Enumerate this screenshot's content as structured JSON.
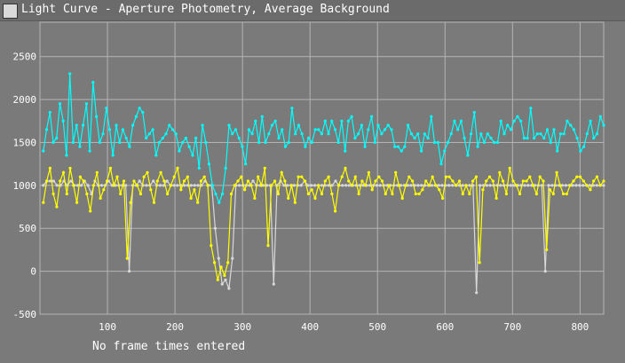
{
  "window": {
    "title": "Light Curve - Aperture Photometry, Average Background"
  },
  "status": {
    "text": "No frame times entered"
  },
  "colors": {
    "background": "#7a7a7a",
    "grid": "#b4b4b4",
    "text": "#ffffff",
    "series1": "#00ffff",
    "series2": "#ffff00",
    "series3": "#d8d8d8"
  },
  "chart_data": {
    "type": "line",
    "xlim": [
      0,
      835
    ],
    "ylim": [
      -500,
      2900
    ],
    "x_ticks": [
      100,
      200,
      300,
      400,
      500,
      600,
      700,
      800
    ],
    "y_ticks": [
      -500,
      0,
      500,
      1000,
      1500,
      2000,
      2500
    ],
    "grid": true,
    "series": [
      {
        "color": "#00ffff",
        "values": [
          1400,
          1650,
          1850,
          1500,
          1550,
          1950,
          1750,
          1350,
          2300,
          1500,
          1700,
          1450,
          1700,
          1950,
          1400,
          2200,
          1800,
          1500,
          1600,
          1900,
          1650,
          1350,
          1700,
          1500,
          1650,
          1550,
          1450,
          1700,
          1800,
          1900,
          1850,
          1550,
          1600,
          1650,
          1350,
          1500,
          1550,
          1600,
          1700,
          1650,
          1600,
          1400,
          1500,
          1550,
          1450,
          1350,
          1550,
          1200,
          1700,
          1500,
          1250,
          1000,
          900,
          800,
          900,
          1200,
          1700,
          1600,
          1650,
          1550,
          1450,
          1250,
          1650,
          1600,
          1750,
          1500,
          1800,
          1500,
          1600,
          1700,
          1750,
          1550,
          1650,
          1450,
          1500,
          1900,
          1600,
          1700,
          1600,
          1450,
          1550,
          1500,
          1650,
          1650,
          1600,
          1750,
          1600,
          1750,
          1650,
          1500,
          1750,
          1400,
          1750,
          1800,
          1550,
          1600,
          1700,
          1450,
          1650,
          1800,
          1500,
          1700,
          1600,
          1650,
          1700,
          1650,
          1450,
          1450,
          1400,
          1450,
          1700,
          1600,
          1550,
          1600,
          1400,
          1600,
          1550,
          1800,
          1500,
          1500,
          1250,
          1400,
          1500,
          1600,
          1750,
          1650,
          1750,
          1550,
          1350,
          1600,
          1850,
          1450,
          1600,
          1500,
          1600,
          1550,
          1500,
          1500,
          1750,
          1600,
          1700,
          1650,
          1750,
          1800,
          1750,
          1550,
          1550,
          1900,
          1550,
          1600,
          1600,
          1550,
          1650,
          1500,
          1650,
          1400,
          1600,
          1600,
          1750,
          1700,
          1650,
          1550,
          1400,
          1450,
          1600,
          1750,
          1550,
          1600,
          1800,
          1700
        ]
      },
      {
        "color": "#ffff00",
        "values": [
          800,
          1050,
          1200,
          900,
          750,
          1050,
          1150,
          900,
          1200,
          1000,
          800,
          1100,
          1050,
          900,
          700,
          1000,
          1150,
          850,
          950,
          1050,
          1200,
          1000,
          1100,
          900,
          1050,
          150,
          800,
          1050,
          1000,
          900,
          1100,
          1150,
          950,
          800,
          1050,
          1150,
          1050,
          900,
          1000,
          1100,
          1200,
          950,
          1050,
          1100,
          850,
          950,
          800,
          1050,
          1100,
          1000,
          300,
          100,
          -100,
          50,
          -50,
          100,
          900,
          1000,
          1050,
          1100,
          950,
          1050,
          1000,
          850,
          1100,
          1000,
          1200,
          300,
          1000,
          1050,
          900,
          1150,
          1050,
          850,
          1000,
          800,
          1100,
          1100,
          1050,
          900,
          950,
          850,
          1000,
          900,
          1050,
          1100,
          900,
          700,
          1000,
          1100,
          1200,
          1050,
          1000,
          1100,
          900,
          1050,
          1000,
          1150,
          950,
          1050,
          1100,
          1050,
          900,
          1000,
          900,
          1150,
          1000,
          850,
          1000,
          1100,
          1050,
          900,
          900,
          950,
          1050,
          1000,
          1100,
          1000,
          950,
          850,
          1100,
          1100,
          1050,
          1000,
          1050,
          900,
          1000,
          900,
          1050,
          1100,
          100,
          950,
          1050,
          1100,
          1050,
          850,
          1150,
          1050,
          900,
          1200,
          1050,
          1000,
          900,
          1050,
          1050,
          1100,
          1000,
          900,
          1100,
          1050,
          250,
          950,
          900,
          1150,
          1000,
          900,
          900,
          1000,
          1050,
          1100,
          1100,
          1050,
          1000,
          950,
          1050,
          1100,
          1000,
          1050
        ]
      },
      {
        "color": "#d8d8d8",
        "values": [
          1000,
          1050,
          1050,
          1050,
          1000,
          1000,
          1050,
          1000,
          1050,
          1000,
          1000,
          1000,
          1050,
          1000,
          900,
          1050,
          1000,
          1000,
          1000,
          1050,
          1000,
          1000,
          1000,
          1000,
          1000,
          0,
          1000,
          1000,
          1050,
          1000,
          1000,
          1000,
          1050,
          1000,
          1000,
          1000,
          1050,
          1000,
          1000,
          1000,
          1000,
          1000,
          1000,
          1000,
          1000,
          1000,
          1000,
          1050,
          1000,
          1000,
          500,
          150,
          -150,
          -100,
          -200,
          150,
          1000,
          1000,
          1000,
          1000,
          1000,
          1050,
          1000,
          1000,
          1000,
          1000,
          1000,
          -150,
          1000,
          1050,
          1000,
          1000,
          1000,
          1000,
          1000,
          1000,
          1050,
          1000,
          1000,
          1000,
          1000,
          1000,
          1000,
          1000,
          1000,
          1050,
          1000,
          1000,
          1000,
          1000,
          1000,
          1000,
          1000,
          1000,
          1000,
          1000,
          1000,
          1000,
          1000,
          1000,
          1000,
          1000,
          1000,
          1000,
          1000,
          1000,
          1000,
          1000,
          1000,
          1000,
          1000,
          1000,
          1000,
          1000,
          1000,
          1000,
          1000,
          1000,
          1000,
          1000,
          1000,
          1000,
          1000,
          1000,
          1000,
          1000,
          -250,
          1000,
          1000,
          1000,
          1000,
          1000,
          1000,
          1000,
          1000,
          1000,
          1000,
          1000,
          1000,
          1000,
          1000,
          1000,
          1000,
          1000,
          1000,
          1000,
          0,
          1000,
          1000,
          1000,
          1000,
          1000,
          1000,
          1000,
          1000,
          1000,
          1000,
          1000,
          1000,
          1000,
          1000,
          1000,
          1000,
          1000
        ]
      }
    ]
  }
}
